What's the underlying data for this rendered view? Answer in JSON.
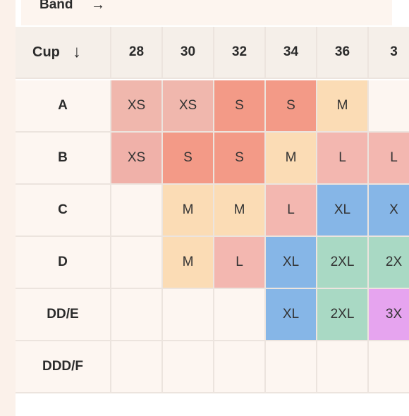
{
  "band": {
    "label": "Band",
    "arrow": "→"
  },
  "cup_header": {
    "label": "Cup",
    "arrow": "↓"
  },
  "band_sizes": [
    "28",
    "30",
    "32",
    "34",
    "36",
    "3"
  ],
  "colors": {
    "XS": "#f0b1a9",
    "S": "#f39a87",
    "S_light": "#f2b0a6",
    "M": "#fbdcb5",
    "L": "#f3b7b0",
    "XL": "#86b6e7",
    "2XL": "#a9d9c4",
    "3XL": "#e6a4ef",
    "empty": "#fdf6f1"
  },
  "rows": [
    {
      "cup": "A",
      "cells": [
        {
          "text": "XS",
          "color": "#f0b7ad"
        },
        {
          "text": "XS",
          "color": "#f0b7ad"
        },
        {
          "text": "S",
          "color": "#f39a87"
        },
        {
          "text": "S",
          "color": "#f39a87"
        },
        {
          "text": "M",
          "color": "#fbdcb5"
        },
        {
          "text": "",
          "color": "#fdf6f1"
        }
      ]
    },
    {
      "cup": "B",
      "cells": [
        {
          "text": "XS",
          "color": "#f0b1a9"
        },
        {
          "text": "S",
          "color": "#f39a87"
        },
        {
          "text": "S",
          "color": "#f39a87"
        },
        {
          "text": "M",
          "color": "#fbdcb5"
        },
        {
          "text": "L",
          "color": "#f3b7b0"
        },
        {
          "text": "L",
          "color": "#f3b7b0"
        }
      ]
    },
    {
      "cup": "C",
      "cells": [
        {
          "text": "",
          "color": "#fdf6f1"
        },
        {
          "text": "M",
          "color": "#fbdcb5"
        },
        {
          "text": "M",
          "color": "#fbdcb5"
        },
        {
          "text": "L",
          "color": "#f3b7b0"
        },
        {
          "text": "XL",
          "color": "#86b6e7"
        },
        {
          "text": "X",
          "color": "#86b6e7"
        }
      ]
    },
    {
      "cup": "D",
      "cells": [
        {
          "text": "",
          "color": "#fdf6f1"
        },
        {
          "text": "M",
          "color": "#fbdcb5"
        },
        {
          "text": "L",
          "color": "#f3b7b0"
        },
        {
          "text": "XL",
          "color": "#86b6e7"
        },
        {
          "text": "2XL",
          "color": "#a9d9c4"
        },
        {
          "text": "2X",
          "color": "#a9d9c4"
        }
      ]
    },
    {
      "cup": "DD/E",
      "cells": [
        {
          "text": "",
          "color": "#fdf6f1"
        },
        {
          "text": "",
          "color": "#fdf6f1"
        },
        {
          "text": "",
          "color": "#fdf6f1"
        },
        {
          "text": "XL",
          "color": "#86b6e7"
        },
        {
          "text": "2XL",
          "color": "#a9d9c4"
        },
        {
          "text": "3X",
          "color": "#e6a4ef"
        }
      ]
    },
    {
      "cup": "DDD/F",
      "cells": [
        {
          "text": "",
          "color": "#fdf6f1"
        },
        {
          "text": "",
          "color": "#fdf6f1"
        },
        {
          "text": "",
          "color": "#fdf6f1"
        },
        {
          "text": "",
          "color": "#fdf6f1"
        },
        {
          "text": "",
          "color": "#fdf6f1"
        },
        {
          "text": "",
          "color": "#fdf6f1"
        }
      ]
    }
  ]
}
